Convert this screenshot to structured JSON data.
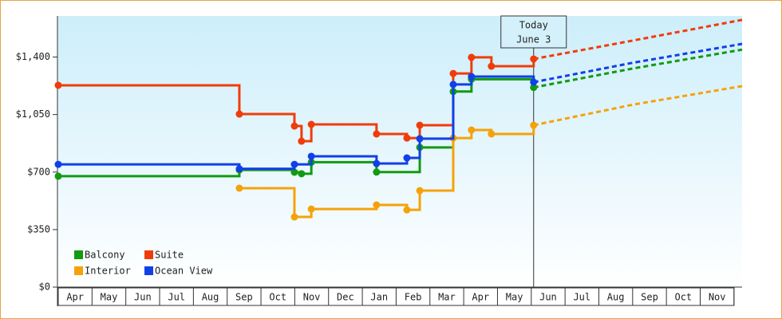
{
  "chart_data": {
    "type": "step",
    "ylim": [
      0,
      1650
    ],
    "yticks": [
      {
        "value": 0,
        "label": "$0"
      },
      {
        "value": 350,
        "label": "$350"
      },
      {
        "value": 700,
        "label": "$700"
      },
      {
        "value": 1050,
        "label": "$1,050"
      },
      {
        "value": 1400,
        "label": "$1,400"
      }
    ],
    "xlim": [
      0,
      20.24
    ],
    "xticks": [
      {
        "value": 0.5,
        "label": "Apr"
      },
      {
        "value": 1.5,
        "label": "May"
      },
      {
        "value": 2.5,
        "label": "Jun"
      },
      {
        "value": 3.5,
        "label": "Jul"
      },
      {
        "value": 4.5,
        "label": "Aug"
      },
      {
        "value": 5.5,
        "label": "Sep"
      },
      {
        "value": 6.5,
        "label": "Oct"
      },
      {
        "value": 7.5,
        "label": "Nov"
      },
      {
        "value": 8.5,
        "label": "Dec"
      },
      {
        "value": 9.5,
        "label": "Jan"
      },
      {
        "value": 10.5,
        "label": "Feb"
      },
      {
        "value": 11.5,
        "label": "Mar"
      },
      {
        "value": 12.5,
        "label": "Apr"
      },
      {
        "value": 13.5,
        "label": "May"
      },
      {
        "value": 14.5,
        "label": "Jun"
      },
      {
        "value": 15.5,
        "label": "Jul"
      },
      {
        "value": 16.5,
        "label": "Aug"
      },
      {
        "value": 17.5,
        "label": "Sep"
      },
      {
        "value": 18.5,
        "label": "Oct"
      },
      {
        "value": 19.5,
        "label": "Nov"
      }
    ],
    "today": {
      "x": 14.07,
      "label_lines": [
        "Today",
        "June 3"
      ]
    },
    "legend": "lower-left",
    "series": [
      {
        "name": "Balcony",
        "color": "#129a12",
        "x": [
          0,
          5.36,
          6.99,
          7.2,
          7.49,
          9.42,
          10.7,
          11.69,
          12.23,
          14.07
        ],
        "values": [
          675,
          713,
          699,
          690,
          760,
          700,
          850,
          1190,
          1265,
          1215
        ],
        "forecast_x": [
          17.0,
          20.24
        ],
        "forecast_values": [
          1330,
          1445
        ]
      },
      {
        "name": "Suite",
        "color": "#f03c0a",
        "x": [
          0,
          5.36,
          6.99,
          7.2,
          7.49,
          9.42,
          10.32,
          10.7,
          11.69,
          12.23,
          12.82,
          14.07
        ],
        "values": [
          1228,
          1053,
          980,
          888,
          990,
          932,
          907,
          985,
          1300,
          1398,
          1344,
          1388
        ],
        "forecast_x": [
          17.0,
          20.24
        ],
        "forecast_values": [
          1500,
          1626
        ]
      },
      {
        "name": "Interior",
        "color": "#f5a20a",
        "x": [
          5.36,
          6.99,
          7.49,
          9.42,
          10.32,
          10.7,
          11.69,
          12.23,
          12.82,
          14.07
        ],
        "values": [
          602,
          427,
          475,
          500,
          470,
          587,
          907,
          956,
          932,
          985
        ],
        "forecast_x": [
          17.0,
          20.24
        ],
        "forecast_values": [
          1110,
          1223
        ]
      },
      {
        "name": "Ocean View",
        "color": "#1040e8",
        "x": [
          0,
          5.36,
          6.99,
          7.49,
          9.42,
          10.32,
          10.7,
          11.69,
          12.23,
          14.07
        ],
        "values": [
          747,
          720,
          747,
          796,
          752,
          786,
          903,
          1233,
          1281,
          1247
        ],
        "forecast_x": [
          17.0,
          20.24
        ],
        "forecast_values": [
          1365,
          1480
        ]
      }
    ]
  }
}
